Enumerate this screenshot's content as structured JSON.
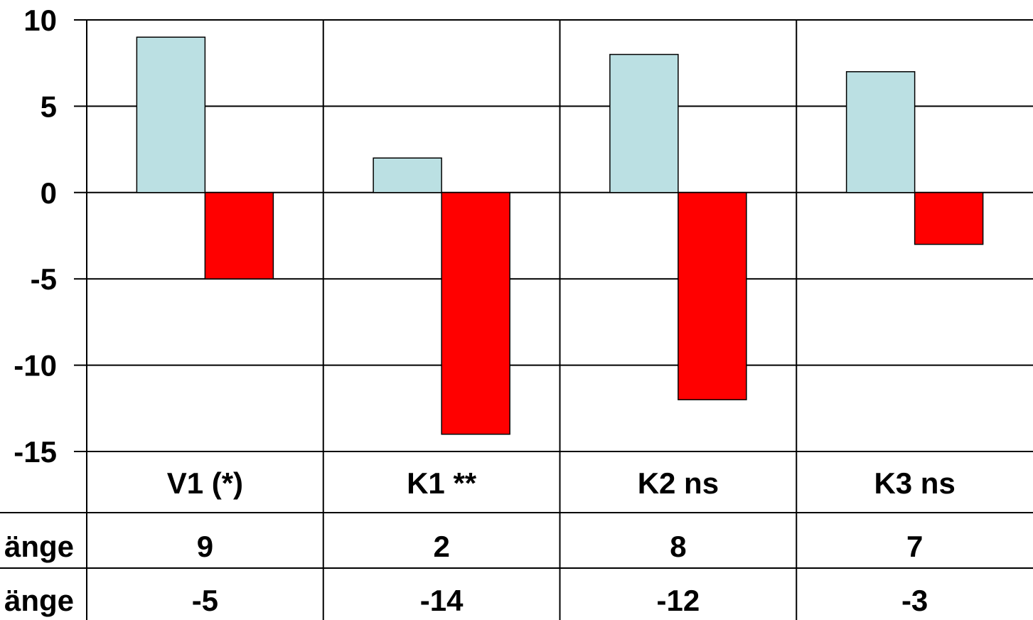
{
  "chart_data": {
    "type": "bar",
    "title": "",
    "xlabel": "",
    "ylabel": "",
    "categories": [
      "V1 (*)",
      "K1 **",
      "K2 ns",
      "K3 ns"
    ],
    "ylim": [
      -15,
      10
    ],
    "yticks": [
      10,
      5,
      0,
      -5,
      -10,
      -15
    ],
    "grid": true,
    "series": [
      {
        "name": "…änge",
        "color": "#BBE0E3",
        "values": [
          9,
          2,
          8,
          7
        ]
      },
      {
        "name": "…änge",
        "color": "#FF0000",
        "values": [
          -5,
          -14,
          -12,
          -3
        ]
      }
    ],
    "table": {
      "rows": [
        {
          "label": "änge",
          "values": [
            "9",
            "2",
            "8",
            "7"
          ]
        },
        {
          "label": "änge",
          "values": [
            "-5",
            "-14",
            "-12",
            "-3"
          ]
        }
      ]
    }
  }
}
